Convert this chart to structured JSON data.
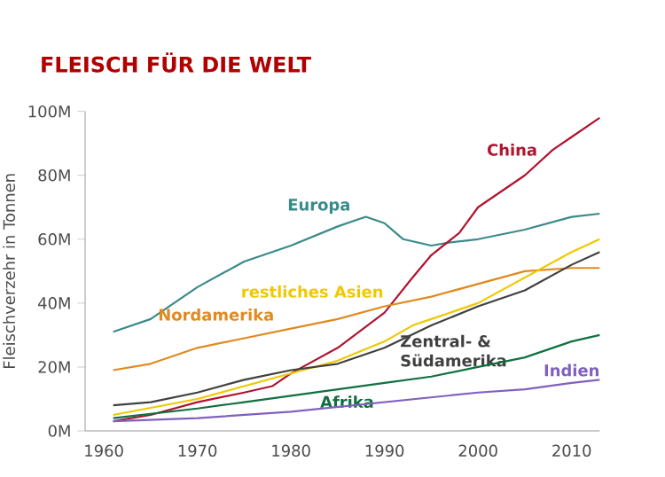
{
  "chart_data": {
    "type": "line",
    "title": "FLEISCH FÜR DIE WELT",
    "ylabel": "Fleischverzehr in Tonnen",
    "xlim": [
      1958,
      2013
    ],
    "xticks": [
      1960,
      1970,
      1980,
      1990,
      2000,
      2010
    ],
    "ylim": [
      0,
      100
    ],
    "yticks": [
      {
        "value": 0,
        "label": "0M"
      },
      {
        "value": 20,
        "label": "20M"
      },
      {
        "value": 40,
        "label": "40M"
      },
      {
        "value": 60,
        "label": "60M"
      },
      {
        "value": 80,
        "label": "80M"
      },
      {
        "value": 100,
        "label": "100M"
      }
    ],
    "grid": false,
    "legend": false,
    "marker": "none",
    "line_style": "solid",
    "series": [
      {
        "name": "Europa",
        "color": "#3a8a8a",
        "x": [
          1961,
          1965,
          1970,
          1975,
          1980,
          1985,
          1988,
          1990,
          1992,
          1995,
          1997,
          2000,
          2005,
          2010,
          2013
        ],
        "values": [
          31,
          35,
          45,
          53,
          58,
          64,
          67,
          65,
          60,
          58,
          59,
          60,
          63,
          67,
          68
        ]
      },
      {
        "name": "China",
        "color": "#b0142e",
        "x": [
          1961,
          1965,
          1970,
          1975,
          1978,
          1980,
          1985,
          1990,
          1993,
          1995,
          1998,
          2000,
          2005,
          2008,
          2010,
          2013
        ],
        "values": [
          3,
          5,
          9,
          12,
          14,
          18,
          26,
          37,
          48,
          55,
          62,
          70,
          80,
          88,
          92,
          98
        ]
      },
      {
        "name": "Nordamerika",
        "color": "#e08a20",
        "x": [
          1961,
          1965,
          1970,
          1975,
          1980,
          1985,
          1990,
          1995,
          2000,
          2005,
          2010,
          2013
        ],
        "values": [
          19,
          21,
          26,
          29,
          32,
          35,
          39,
          42,
          46,
          50,
          51,
          51
        ]
      },
      {
        "name": "restliches Asien",
        "color": "#f0c800",
        "x": [
          1961,
          1970,
          1975,
          1980,
          1985,
          1990,
          1993,
          1995,
          2000,
          2005,
          2010,
          2013
        ],
        "values": [
          5,
          10,
          14,
          18,
          22,
          28,
          33,
          35,
          40,
          48,
          56,
          60
        ]
      },
      {
        "name": "Zentral- & Südamerika",
        "color": "#404040",
        "x": [
          1961,
          1965,
          1970,
          1975,
          1980,
          1985,
          1990,
          1995,
          2000,
          2005,
          2010,
          2013
        ],
        "values": [
          8,
          9,
          12,
          16,
          19,
          21,
          26,
          33,
          39,
          44,
          52,
          56
        ]
      },
      {
        "name": "Afrika",
        "color": "#107040",
        "x": [
          1961,
          1970,
          1975,
          1980,
          1985,
          1990,
          1995,
          2000,
          2005,
          2010,
          2013
        ],
        "values": [
          4,
          7,
          9,
          11,
          13,
          15,
          17,
          20,
          23,
          28,
          30
        ]
      },
      {
        "name": "Indien",
        "color": "#8060c0",
        "x": [
          1961,
          1970,
          1980,
          1990,
          2000,
          2005,
          2010,
          2013
        ],
        "values": [
          3,
          4,
          6,
          9,
          12,
          13,
          15,
          16
        ]
      }
    ]
  }
}
